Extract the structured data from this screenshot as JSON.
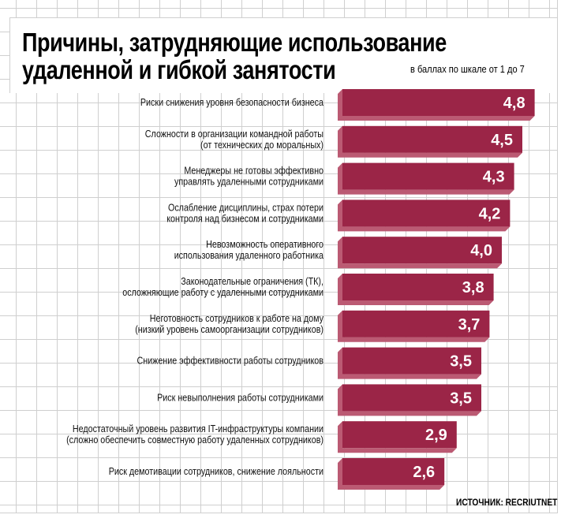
{
  "chart_data": {
    "type": "bar",
    "orientation": "horizontal",
    "title": "Причины, затрудняющие использование удаленной и гибкой занятости",
    "subtitle": "в баллах по шкале от 1 до 7",
    "source": "ИСТОЧНИК: RECRIUTNET",
    "xlim": [
      0,
      7
    ],
    "bar_color": "#9b2547",
    "bar_side_color": "#bb5a73",
    "categories": [
      [
        "Риски снижения уровня безопасности бизнеса"
      ],
      [
        "Сложности в организации командной работы",
        "(от технических до моральных)"
      ],
      [
        "Менеджеры не готовы эффективно",
        "управлять удаленными сотрудниками"
      ],
      [
        "Ослабление дисциплины, страх потери",
        "контроля над бизнесом и сотрудниками"
      ],
      [
        "Невозможность оперативного",
        "использования удаленного работника"
      ],
      [
        "Законодательные ограничения (ТК),",
        "осложняющие работу с удаленными сотрудниками"
      ],
      [
        "Неготовность сотрудников к работе на дому",
        "(низкий уровень самоорганизации сотрудников)"
      ],
      [
        "Снижение эффективности работы сотрудников"
      ],
      [
        "Риск невыполнения работы сотрудниками"
      ],
      [
        "Недостаточный уровень развития IT-инфраструктуры компании",
        "(сложно обеспечить совместную работу удаленных сотрудников)"
      ],
      [
        "Риск демотивации сотрудников, снижение лояльности"
      ]
    ],
    "values": [
      4.8,
      4.5,
      4.3,
      4.2,
      4.0,
      3.8,
      3.7,
      3.5,
      3.5,
      2.9,
      2.6
    ],
    "value_labels": [
      "4,8",
      "4,5",
      "4,3",
      "4,2",
      "4,0",
      "3,8",
      "3,7",
      "3,5",
      "3,5",
      "2,9",
      "2,6"
    ]
  }
}
